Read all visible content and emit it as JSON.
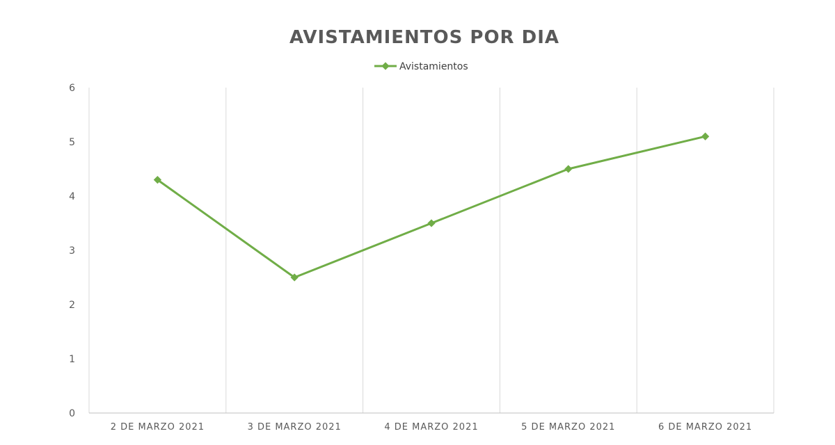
{
  "chart_data": {
    "type": "line",
    "title": "AVISTAMIENTOS POR DIA",
    "categories": [
      "2 DE MARZO 2021",
      "3 DE MARZO 2021",
      "4 DE MARZO 2021",
      "5 DE MARZO 2021",
      "6 DE MARZO 2021"
    ],
    "series": [
      {
        "name": "Avistamientos",
        "values": [
          4.3,
          2.5,
          3.5,
          4.5,
          5.1
        ]
      }
    ],
    "ylim": [
      0,
      6
    ],
    "yticks": [
      "0",
      "1",
      "2",
      "3",
      "4",
      "5",
      "6"
    ],
    "xlabel": "",
    "ylabel": "",
    "legend": "top",
    "grid": "vertical",
    "colors": {
      "series": "#70ad47",
      "grid": "#d9d9d9",
      "text": "#595959"
    }
  }
}
